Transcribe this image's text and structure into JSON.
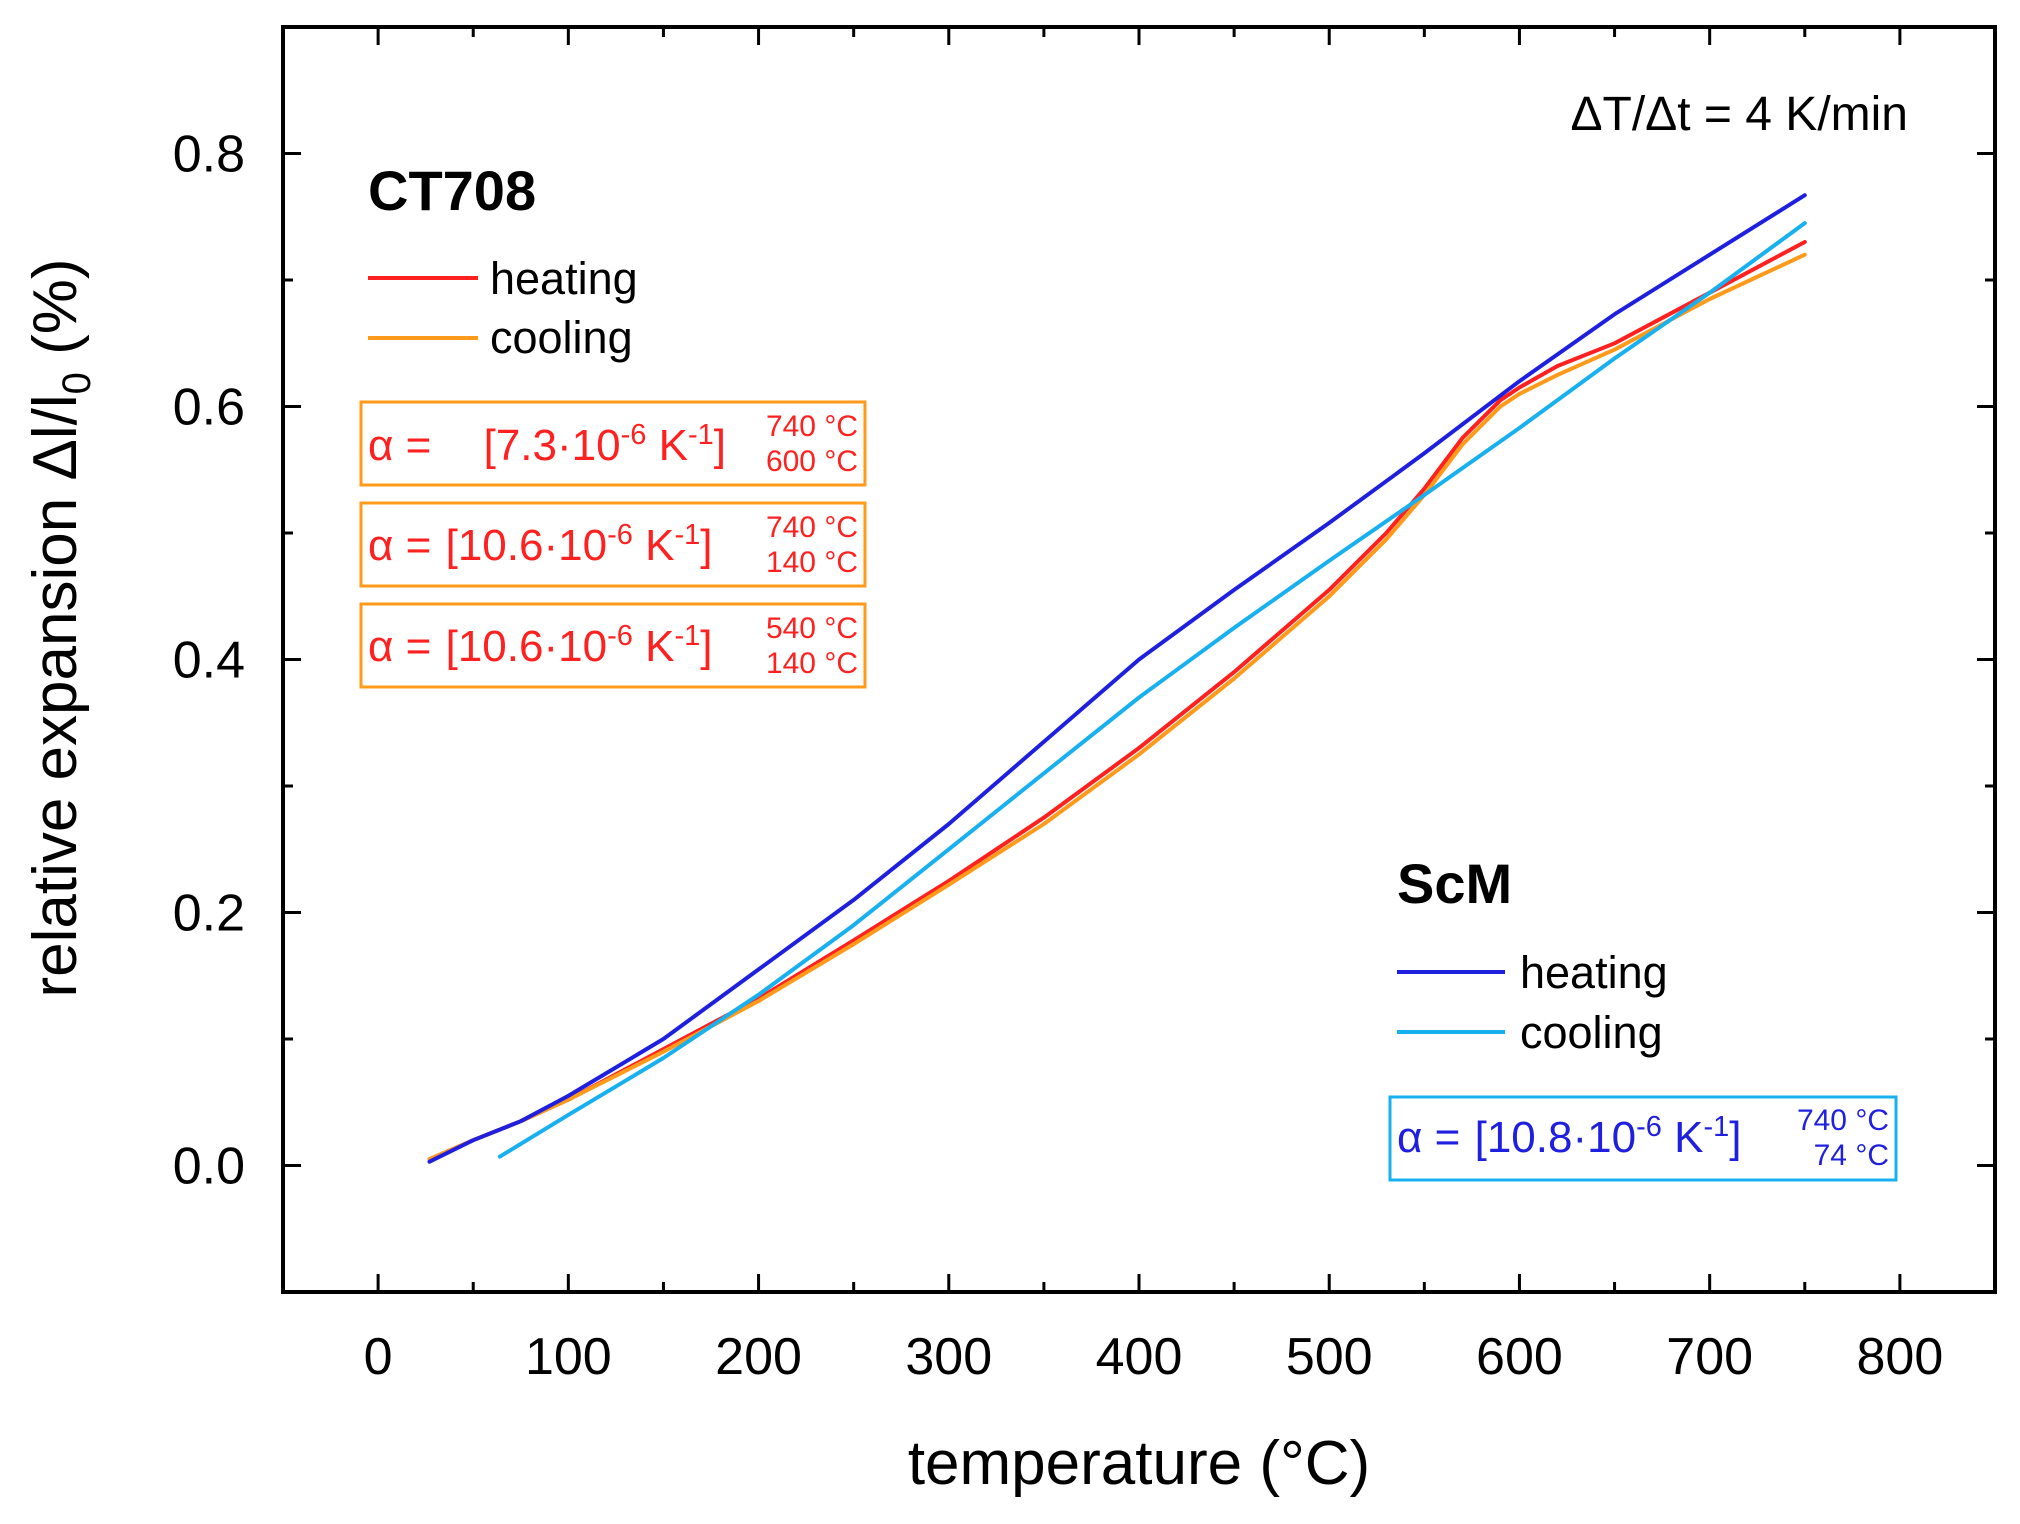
{
  "chart_data": {
    "type": "line",
    "title": "",
    "xlabel": "temperature (°C)",
    "ylabel_main": "relative expansion Δl/l",
    "ylabel_sub": "0",
    "ylabel_unit": " (%)",
    "xlim": [
      -50,
      850
    ],
    "ylim": [
      -0.1,
      0.9
    ],
    "x_ticks": [
      0,
      100,
      200,
      300,
      400,
      500,
      600,
      700,
      800
    ],
    "x_tick_labels": [
      "0",
      "100",
      "200",
      "300",
      "400",
      "500",
      "600",
      "700",
      "800"
    ],
    "y_ticks": [
      0.0,
      0.2,
      0.4,
      0.6,
      0.8
    ],
    "y_tick_labels": [
      "0.0",
      "0.2",
      "0.4",
      "0.6",
      "0.8"
    ],
    "grid": false,
    "rate_annotation": "ΔT/Δt = 4 K/min",
    "groups": [
      {
        "name": "CT708",
        "legend_position": "top-left",
        "legend": [
          {
            "label": "heating",
            "color": "#ff2020"
          },
          {
            "label": "cooling",
            "color": "#ff9a1a"
          }
        ],
        "box_color": "#ff9a1a",
        "text_color": "#ff2020",
        "coefficients": [
          {
            "lhs": "α = ",
            "value": "[7.3·10",
            "exp": "-6",
            "unit": " K",
            "unit_exp": "-1",
            "close": "]",
            "upper": "740 °C",
            "lower": "600 °C"
          },
          {
            "lhs": "α = ",
            "value": "[10.6·10",
            "exp": "-6",
            "unit": " K",
            "unit_exp": "-1",
            "close": "]",
            "upper": "740 °C",
            "lower": "140 °C"
          },
          {
            "lhs": "α = ",
            "value": "[10.6·10",
            "exp": "-6",
            "unit": " K",
            "unit_exp": "-1",
            "close": "]",
            "upper": "540 °C",
            "lower": "140 °C"
          }
        ]
      },
      {
        "name": "ScM",
        "legend_position": "bottom-right",
        "legend": [
          {
            "label": "heating",
            "color": "#1f1fe0"
          },
          {
            "label": "cooling",
            "color": "#19b0f0"
          }
        ],
        "box_color": "#19b0f0",
        "text_color": "#1f1fe0",
        "coefficients": [
          {
            "lhs": "α = ",
            "value": "[10.8·10",
            "exp": "-6",
            "unit": " K",
            "unit_exp": "-1",
            "close": "]",
            "upper": "740 °C",
            "lower": "74 °C"
          }
        ]
      }
    ],
    "series": [
      {
        "name": "CT708 heating",
        "color": "#ff2020",
        "x": [
          27,
          50,
          75,
          100,
          150,
          200,
          250,
          300,
          350,
          400,
          450,
          500,
          530,
          550,
          570,
          590,
          600,
          620,
          650,
          700,
          750
        ],
        "y": [
          0.005,
          0.02,
          0.035,
          0.052,
          0.092,
          0.132,
          0.178,
          0.225,
          0.275,
          0.33,
          0.39,
          0.455,
          0.5,
          0.535,
          0.575,
          0.605,
          0.615,
          0.632,
          0.65,
          0.69,
          0.73
        ]
      },
      {
        "name": "CT708 cooling",
        "color": "#ff9a1a",
        "x": [
          27,
          50,
          75,
          100,
          150,
          200,
          250,
          300,
          350,
          400,
          450,
          500,
          530,
          550,
          570,
          590,
          600,
          620,
          650,
          700,
          750
        ],
        "y": [
          0.005,
          0.02,
          0.035,
          0.052,
          0.09,
          0.13,
          0.175,
          0.222,
          0.27,
          0.325,
          0.385,
          0.45,
          0.495,
          0.53,
          0.57,
          0.6,
          0.61,
          0.625,
          0.645,
          0.685,
          0.72
        ]
      },
      {
        "name": "ScM heating",
        "color": "#1f1fe0",
        "x": [
          27,
          50,
          75,
          100,
          150,
          200,
          250,
          300,
          350,
          400,
          450,
          500,
          550,
          600,
          650,
          700,
          750
        ],
        "y": [
          0.003,
          0.02,
          0.035,
          0.055,
          0.1,
          0.155,
          0.21,
          0.27,
          0.335,
          0.4,
          0.455,
          0.508,
          0.563,
          0.62,
          0.673,
          0.72,
          0.767
        ]
      },
      {
        "name": "ScM cooling",
        "color": "#19b0f0",
        "x": [
          64,
          100,
          150,
          200,
          250,
          300,
          350,
          400,
          450,
          500,
          550,
          600,
          650,
          700,
          750
        ],
        "y": [
          0.007,
          0.04,
          0.085,
          0.135,
          0.19,
          0.25,
          0.31,
          0.37,
          0.425,
          0.478,
          0.53,
          0.583,
          0.638,
          0.69,
          0.745
        ]
      }
    ]
  }
}
